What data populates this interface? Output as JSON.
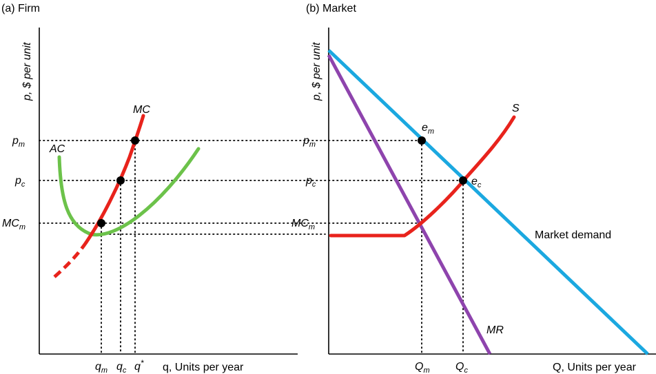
{
  "panel_a": {
    "title": "(a) Firm",
    "y_axis_label": "p, $ per unit",
    "x_axis_label": "q, Units per year",
    "curve_labels": {
      "mc": "MC",
      "ac": "AC"
    },
    "y_ticks": [
      {
        "id": "pm",
        "base": "p",
        "sub": "m"
      },
      {
        "id": "pc",
        "base": "p",
        "sub": "c"
      },
      {
        "id": "mcm",
        "base": "MC",
        "sub": "m"
      }
    ],
    "x_ticks": [
      {
        "id": "qm",
        "base": "q",
        "sub": "m",
        "sup": ""
      },
      {
        "id": "qc",
        "base": "q",
        "sub": "c",
        "sup": ""
      },
      {
        "id": "qstar",
        "base": "q",
        "sub": "",
        "sup": "*"
      }
    ]
  },
  "panel_b": {
    "title": "(b) Market",
    "y_axis_label": "p, $ per unit",
    "x_axis_label": "Q, Units per year",
    "curve_labels": {
      "s": "S",
      "mr": "MR",
      "demand": "Market demand"
    },
    "points": [
      {
        "id": "em",
        "base": "e",
        "sub": "m"
      },
      {
        "id": "ec",
        "base": "e",
        "sub": "c"
      }
    ],
    "y_ticks": [
      {
        "id": "pm",
        "base": "p",
        "sub": "m"
      },
      {
        "id": "pc",
        "base": "p",
        "sub": "c"
      },
      {
        "id": "mcm",
        "base": "MC",
        "sub": "m"
      }
    ],
    "x_ticks": [
      {
        "id": "Qm",
        "base": "Q",
        "sub": "m"
      },
      {
        "id": "Qc",
        "base": "Q",
        "sub": "c"
      }
    ]
  },
  "colors": {
    "mc": "#e8231c",
    "ac": "#6cc24a",
    "demand": "#1ba8e0",
    "mr": "#8e44ad",
    "s": "#e8231c",
    "point": "#000000"
  }
}
